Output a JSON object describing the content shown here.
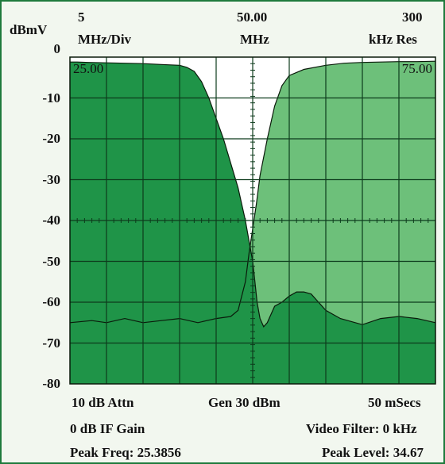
{
  "header": {
    "unit": "dBmV",
    "span_value": "5",
    "span_unit": "MHz/Div",
    "center_value": "50.00",
    "center_unit": "MHz",
    "res_value": "300",
    "res_unit": "kHz Res"
  },
  "footer": {
    "attn": "10 dB Attn",
    "gen": "Gen 30 dBm",
    "sweep": "50 mSecs",
    "if_gain": "0 dB IF Gain",
    "video_filter": "Video Filter: 0 kHz",
    "peak_freq": "Peak Freq: 25.3856",
    "peak_level": "Peak Level: 34.67"
  },
  "colors": {
    "border": "#1e7a3c",
    "dark_fill": "#1f9448",
    "light_fill": "#6dc07a",
    "background": "#ffffff",
    "grid": "#0d3b1c",
    "trace": "#0a1a0a"
  },
  "chart_data": {
    "type": "area",
    "xlabel": "",
    "ylabel": "dBmV",
    "xlim": [
      25,
      75
    ],
    "ylim": [
      -80,
      0
    ],
    "x_tick_labels": [
      "25.00",
      "75.00"
    ],
    "y_ticks": [
      0,
      -10,
      -20,
      -30,
      -40,
      -50,
      -60,
      -70,
      -80
    ],
    "grid": true,
    "series": [
      {
        "x": [
          25,
          26,
          27.5,
          30,
          32.5,
          35,
          37.5,
          40,
          41,
          42,
          43,
          44,
          45,
          46,
          47,
          48,
          48.5,
          49,
          49.5,
          50,
          50.3,
          50.6,
          51,
          51.5,
          52,
          52.5,
          53,
          54,
          55,
          56,
          57,
          58,
          59,
          60,
          62,
          65,
          67.5,
          70,
          72.5,
          75
        ],
        "values": [
          -1.2,
          -1.2,
          -1.3,
          -1.4,
          -1.5,
          -1.6,
          -1.8,
          -2.0,
          -2.5,
          -3.5,
          -6,
          -10,
          -15,
          -20,
          -26,
          -32,
          -36,
          -40,
          -45,
          -50,
          -55,
          -60,
          -64,
          -66,
          -65,
          -63,
          -61,
          -60,
          -58.5,
          -57.5,
          -57.5,
          -58,
          -60,
          -62,
          -64,
          -65.5,
          -64,
          -63.5,
          -64,
          -65
        ]
      },
      {
        "x": [
          25,
          28,
          30,
          32.5,
          35,
          37.5,
          40,
          42.5,
          45,
          47,
          48,
          49,
          49.5,
          50,
          50.5,
          51,
          52,
          53,
          54,
          55,
          57,
          60,
          62.5,
          65,
          67.5,
          70,
          72.5,
          75
        ],
        "values": [
          -65,
          -64.5,
          -65,
          -64,
          -65,
          -64.5,
          -64,
          -65,
          -64,
          -63.5,
          -62,
          -55,
          -48,
          -42,
          -36,
          -29,
          -20,
          -12,
          -7,
          -4.5,
          -3,
          -2,
          -1.5,
          -1.3,
          -1.2,
          -1.1,
          -1.1,
          -1.0
        ]
      }
    ]
  }
}
